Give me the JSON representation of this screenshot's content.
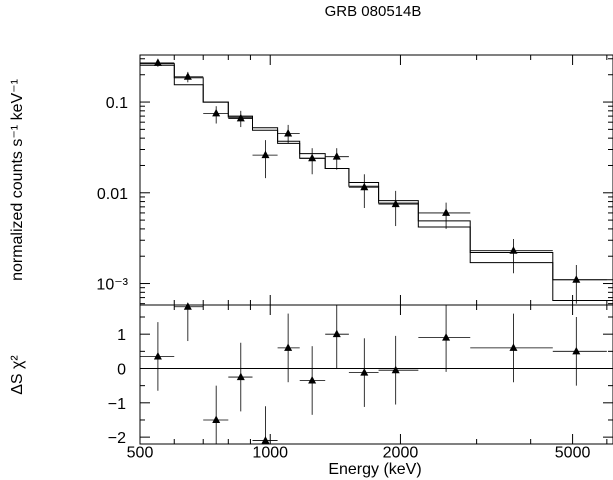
{
  "chart_data": {
    "type": "scatter",
    "title": "GRB 080514B",
    "xlabel": "Energy (keV)",
    "x_scale": "log",
    "xlim": [
      500,
      6200
    ],
    "x_ticks": [
      {
        "value": 500,
        "label": "500"
      },
      {
        "value": 1000,
        "label": "1000"
      },
      {
        "value": 2000,
        "label": "2000"
      },
      {
        "value": 5000,
        "label": "5000"
      }
    ],
    "panels": [
      {
        "name": "spectrum",
        "ylabel": "normalized counts s⁻¹ keV⁻¹",
        "y_scale": "log",
        "ylim": [
          0.00058,
          0.33
        ],
        "y_ticks": [
          {
            "value": 0.1,
            "label": "0.1"
          },
          {
            "value": 0.01,
            "label": "0.01"
          },
          {
            "value": 0.001,
            "label": "10⁻³"
          }
        ],
        "points": [
          {
            "x": 550,
            "xlo": 500,
            "xhi": 600,
            "y": 0.27,
            "ylo": 0.245,
            "yhi": 0.295
          },
          {
            "x": 645,
            "xlo": 600,
            "xhi": 700,
            "y": 0.19,
            "ylo": 0.165,
            "yhi": 0.215
          },
          {
            "x": 750,
            "xlo": 700,
            "xhi": 800,
            "y": 0.075,
            "ylo": 0.058,
            "yhi": 0.09
          },
          {
            "x": 855,
            "xlo": 800,
            "xhi": 910,
            "y": 0.066,
            "ylo": 0.053,
            "yhi": 0.08
          },
          {
            "x": 975,
            "xlo": 910,
            "xhi": 1040,
            "y": 0.026,
            "ylo": 0.0145,
            "yhi": 0.038
          },
          {
            "x": 1100,
            "xlo": 1040,
            "xhi": 1170,
            "y": 0.045,
            "ylo": 0.035,
            "yhi": 0.056
          },
          {
            "x": 1250,
            "xlo": 1170,
            "xhi": 1340,
            "y": 0.024,
            "ylo": 0.016,
            "yhi": 0.031
          },
          {
            "x": 1425,
            "xlo": 1340,
            "xhi": 1520,
            "y": 0.025,
            "ylo": 0.018,
            "yhi": 0.031
          },
          {
            "x": 1650,
            "xlo": 1520,
            "xhi": 1780,
            "y": 0.0115,
            "ylo": 0.0068,
            "yhi": 0.016
          },
          {
            "x": 1950,
            "xlo": 1780,
            "xhi": 2200,
            "y": 0.0075,
            "ylo": 0.0043,
            "yhi": 0.0105
          },
          {
            "x": 2550,
            "xlo": 2200,
            "xhi": 2900,
            "y": 0.006,
            "ylo": 0.004,
            "yhi": 0.0078
          },
          {
            "x": 3650,
            "xlo": 2900,
            "xhi": 4500,
            "y": 0.0023,
            "ylo": 0.0013,
            "yhi": 0.0031
          },
          {
            "x": 5100,
            "xlo": 4500,
            "xhi": 6000,
            "y": 0.0011,
            "ylo": 0.0006,
            "yhi": 0.0016
          }
        ],
        "model": {
          "edges": [
            500,
            600,
            700,
            800,
            910,
            1040,
            1170,
            1340,
            1520,
            1780,
            2200,
            2900,
            4500,
            6200
          ],
          "values": [
            0.255,
            0.155,
            0.1,
            0.07,
            0.052,
            0.037,
            0.027,
            0.0185,
            0.013,
            0.0082,
            0.0042,
            0.0017,
            0.00065
          ]
        },
        "model2": {
          "edges": [
            500,
            600,
            700,
            800,
            910,
            1040,
            1170,
            1340,
            1520,
            1780,
            2200,
            2900,
            4500,
            6200
          ],
          "values": [
            0.265,
            0.185,
            0.1,
            0.068,
            0.049,
            0.035,
            0.024,
            0.0185,
            0.0118,
            0.0077,
            0.0049,
            0.0022,
            0.0011
          ]
        }
      },
      {
        "name": "residuals",
        "ylabel": "ΔS χ²",
        "y_scale": "linear",
        "ylim": [
          -2.2,
          1.85
        ],
        "zero_line": 0,
        "y_ticks": [
          {
            "value": 1,
            "label": "1"
          },
          {
            "value": 0,
            "label": "0"
          },
          {
            "value": -1,
            "label": "−1"
          },
          {
            "value": -2,
            "label": "−2"
          }
        ],
        "points": [
          {
            "x": 550,
            "xlo": 500,
            "xhi": 600,
            "y": 0.35,
            "ylo": -0.65,
            "yhi": 1.35
          },
          {
            "x": 645,
            "xlo": 600,
            "xhi": 700,
            "y": 1.8,
            "ylo": 0.8,
            "yhi": 2.1
          },
          {
            "x": 750,
            "xlo": 700,
            "xhi": 800,
            "y": -1.5,
            "ylo": -2.2,
            "yhi": -0.5
          },
          {
            "x": 855,
            "xlo": 800,
            "xhi": 910,
            "y": -0.25,
            "ylo": -1.25,
            "yhi": 0.75
          },
          {
            "x": 975,
            "xlo": 910,
            "xhi": 1040,
            "y": -2.1,
            "ylo": -2.2,
            "yhi": -1.1
          },
          {
            "x": 1100,
            "xlo": 1040,
            "xhi": 1170,
            "y": 0.6,
            "ylo": -0.4,
            "yhi": 1.6
          },
          {
            "x": 1250,
            "xlo": 1170,
            "xhi": 1340,
            "y": -0.35,
            "ylo": -1.35,
            "yhi": 0.65
          },
          {
            "x": 1425,
            "xlo": 1340,
            "xhi": 1520,
            "y": 1.0,
            "ylo": 0.0,
            "yhi": 2.0
          },
          {
            "x": 1650,
            "xlo": 1520,
            "xhi": 1780,
            "y": -0.12,
            "ylo": -1.12,
            "yhi": 0.88
          },
          {
            "x": 1950,
            "xlo": 1780,
            "xhi": 2200,
            "y": -0.05,
            "ylo": -1.05,
            "yhi": 0.95
          },
          {
            "x": 2550,
            "xlo": 2200,
            "xhi": 2900,
            "y": 0.9,
            "ylo": -0.1,
            "yhi": 1.9
          },
          {
            "x": 3650,
            "xlo": 2900,
            "xhi": 4500,
            "y": 0.6,
            "ylo": -0.4,
            "yhi": 1.6
          },
          {
            "x": 5100,
            "xlo": 4500,
            "xhi": 6000,
            "y": 0.5,
            "ylo": -0.5,
            "yhi": 1.5
          }
        ]
      }
    ]
  }
}
